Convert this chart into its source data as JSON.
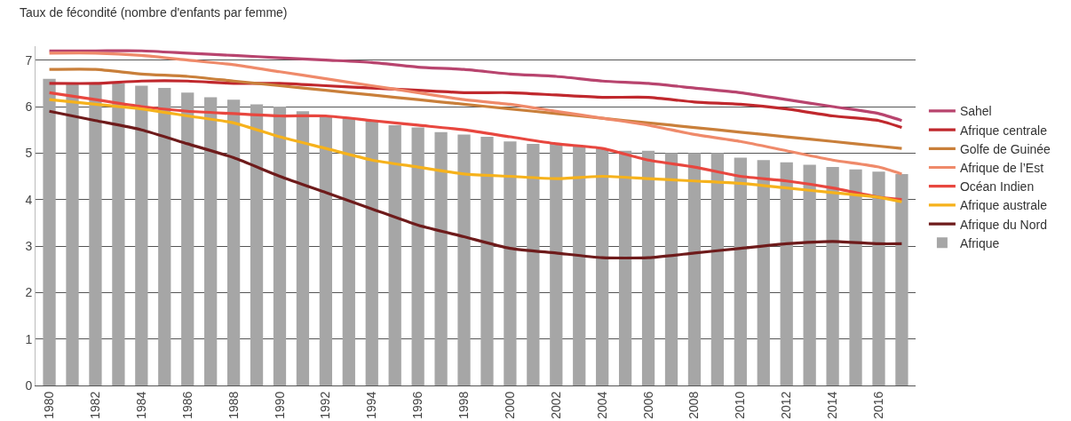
{
  "chart_data": {
    "type": "bar",
    "ylabel": "Taux de fécondité (nombre d'enfants par femme)",
    "x": [
      1980,
      1981,
      1982,
      1983,
      1984,
      1985,
      1986,
      1987,
      1988,
      1989,
      1990,
      1991,
      1992,
      1993,
      1994,
      1995,
      1996,
      1997,
      1998,
      1999,
      2000,
      2001,
      2002,
      2003,
      2004,
      2005,
      2006,
      2007,
      2008,
      2009,
      2010,
      2011,
      2012,
      2013,
      2014,
      2015,
      2016,
      2017
    ],
    "xlim": [
      1979.4,
      2017.6
    ],
    "xticks": [
      1980,
      1982,
      1984,
      1986,
      1988,
      1990,
      1992,
      1994,
      1996,
      1998,
      2000,
      2002,
      2004,
      2006,
      2008,
      2010,
      2012,
      2014,
      2016
    ],
    "ylim": [
      0,
      7.3
    ],
    "yticks": [
      0,
      1,
      2,
      3,
      4,
      5,
      6,
      7
    ],
    "grid": "y",
    "legend": "right",
    "series": [
      {
        "name": "Sahel",
        "type": "line",
        "color": "#b8446e",
        "x": [
          1980,
          1982,
          1984,
          1986,
          1988,
          1990,
          1992,
          1994,
          1996,
          1998,
          2000,
          2002,
          2004,
          2006,
          2008,
          2010,
          2012,
          2014,
          2016,
          2017
        ],
        "values": [
          7.2,
          7.2,
          7.2,
          7.15,
          7.1,
          7.05,
          7.0,
          6.95,
          6.85,
          6.8,
          6.7,
          6.65,
          6.55,
          6.5,
          6.4,
          6.3,
          6.15,
          6.0,
          5.85,
          5.7
        ]
      },
      {
        "name": "Afrique centrale",
        "type": "line",
        "color": "#c0282d",
        "x": [
          1980,
          1982,
          1984,
          1986,
          1988,
          1990,
          1992,
          1994,
          1996,
          1998,
          2000,
          2002,
          2004,
          2006,
          2008,
          2010,
          2012,
          2014,
          2016,
          2017
        ],
        "values": [
          6.5,
          6.5,
          6.55,
          6.55,
          6.5,
          6.5,
          6.45,
          6.4,
          6.35,
          6.3,
          6.3,
          6.25,
          6.2,
          6.2,
          6.1,
          6.05,
          5.95,
          5.8,
          5.7,
          5.55
        ]
      },
      {
        "name": "Golfe de Guinée",
        "type": "line",
        "color": "#c97f3a",
        "x": [
          1980,
          1982,
          1984,
          1986,
          1988,
          1990,
          1992,
          1994,
          1996,
          1998,
          2000,
          2002,
          2004,
          2006,
          2008,
          2010,
          2012,
          2014,
          2016,
          2017
        ],
        "values": [
          6.8,
          6.8,
          6.7,
          6.65,
          6.55,
          6.45,
          6.35,
          6.25,
          6.15,
          6.05,
          5.95,
          5.85,
          5.75,
          5.65,
          5.55,
          5.45,
          5.35,
          5.25,
          5.15,
          5.1
        ]
      },
      {
        "name": "Afrique de l’Est",
        "type": "line",
        "color": "#ef8a6a",
        "x": [
          1980,
          1982,
          1984,
          1986,
          1988,
          1990,
          1992,
          1994,
          1996,
          1998,
          2000,
          2002,
          2004,
          2006,
          2008,
          2010,
          2012,
          2014,
          2016,
          2017
        ],
        "values": [
          7.15,
          7.15,
          7.1,
          7.0,
          6.9,
          6.75,
          6.6,
          6.45,
          6.3,
          6.15,
          6.05,
          5.9,
          5.75,
          5.6,
          5.4,
          5.25,
          5.05,
          4.85,
          4.7,
          4.55
        ]
      },
      {
        "name": "Océan Indien",
        "type": "line",
        "color": "#e8473f",
        "x": [
          1980,
          1982,
          1984,
          1986,
          1988,
          1990,
          1992,
          1994,
          1996,
          1998,
          2000,
          2002,
          2004,
          2006,
          2008,
          2010,
          2012,
          2014,
          2016,
          2017
        ],
        "values": [
          6.3,
          6.15,
          6.0,
          5.9,
          5.85,
          5.8,
          5.8,
          5.7,
          5.6,
          5.5,
          5.35,
          5.2,
          5.1,
          4.85,
          4.7,
          4.5,
          4.4,
          4.25,
          4.05,
          4.0
        ]
      },
      {
        "name": "Afrique australe",
        "type": "line",
        "color": "#f6b21c",
        "x": [
          1980,
          1982,
          1984,
          1986,
          1988,
          1990,
          1992,
          1994,
          1996,
          1998,
          2000,
          2002,
          2004,
          2006,
          2008,
          2010,
          2012,
          2014,
          2016,
          2017
        ],
        "values": [
          6.15,
          6.05,
          5.95,
          5.8,
          5.65,
          5.35,
          5.1,
          4.85,
          4.7,
          4.55,
          4.5,
          4.45,
          4.5,
          4.45,
          4.4,
          4.35,
          4.25,
          4.15,
          4.05,
          3.95
        ]
      },
      {
        "name": "Afrique du Nord",
        "type": "line",
        "color": "#6e1b1b",
        "x": [
          1980,
          1982,
          1984,
          1986,
          1988,
          1990,
          1992,
          1994,
          1996,
          1998,
          2000,
          2002,
          2004,
          2006,
          2008,
          2010,
          2012,
          2014,
          2016,
          2017
        ],
        "values": [
          5.9,
          5.7,
          5.5,
          5.2,
          4.9,
          4.5,
          4.15,
          3.8,
          3.45,
          3.2,
          2.95,
          2.85,
          2.75,
          2.75,
          2.85,
          2.95,
          3.05,
          3.1,
          3.05,
          3.05
        ]
      },
      {
        "name": "Afrique",
        "color": "#a6a6a6",
        "values": [
          6.6,
          6.5,
          6.5,
          6.5,
          6.45,
          6.4,
          6.3,
          6.2,
          6.15,
          6.05,
          6.0,
          5.9,
          5.8,
          5.75,
          5.7,
          5.6,
          5.55,
          5.45,
          5.4,
          5.35,
          5.25,
          5.2,
          5.2,
          5.15,
          5.1,
          5.05,
          5.05,
          5.0,
          5.0,
          5.0,
          4.9,
          4.85,
          4.8,
          4.75,
          4.7,
          4.65,
          4.6,
          4.55
        ]
      }
    ]
  }
}
